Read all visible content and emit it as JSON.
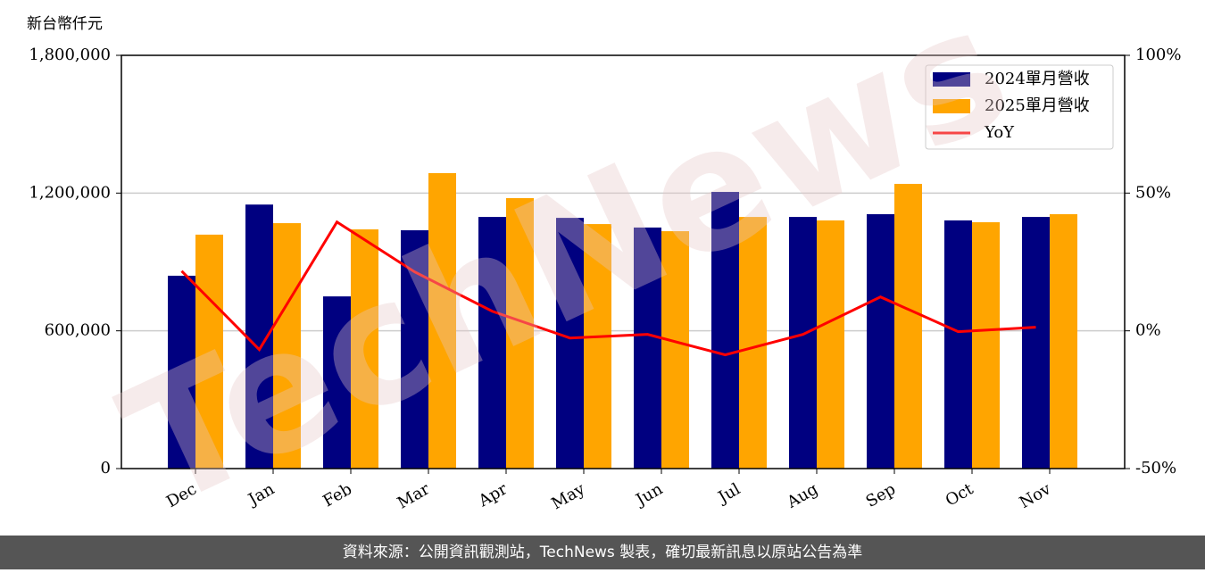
{
  "chart_data": {
    "type": "bar-line",
    "y_label": "新台幣仟元",
    "categories": [
      "Dec",
      "Jan",
      "Feb",
      "Mar",
      "Apr",
      "May",
      "Jun",
      "Jul",
      "Aug",
      "Sep",
      "Oct",
      "Nov"
    ],
    "series": [
      {
        "name": "2024單月營收",
        "color": "#000080",
        "values": [
          840000,
          1150000,
          750000,
          1038000,
          1096000,
          1092000,
          1050000,
          1205000,
          1096000,
          1108000,
          1081000,
          1096000
        ]
      },
      {
        "name": "2025單月營收",
        "color": "#ffa500",
        "values": [
          1019000,
          1069000,
          1042000,
          1287000,
          1178000,
          1065000,
          1034000,
          1096000,
          1081000,
          1240000,
          1073000,
          1108000
        ]
      },
      {
        "name": "YoY",
        "color": "#ff0000",
        "axis": "y2",
        "values": [
          21.7,
          -6.8,
          39.5,
          21.4,
          7.1,
          -2.6,
          -1.3,
          -8.7,
          -1.3,
          12.3,
          -0.3,
          1.3
        ]
      }
    ],
    "ylim": [
      0,
      1800000
    ],
    "yticks": [
      0,
      {
        "value": 600000,
        "label": "600,000"
      },
      {
        "value": 1200000,
        "label": "1,200,000"
      },
      {
        "value": 1800000,
        "label": "1,800,000"
      }
    ],
    "y2lim": [
      -50,
      100
    ],
    "y2ticks": [
      {
        "value": -50,
        "label": "-50%"
      },
      {
        "value": 0,
        "label": "0%"
      },
      {
        "value": 50,
        "label": "50%"
      },
      {
        "value": 100,
        "label": "100%"
      }
    ],
    "grid": true,
    "legend": "upper right",
    "watermark": "TechNews",
    "footer": "資料來源：公開資訊觀測站，TechNews 製表，確切最新訊息以原站公告為準"
  }
}
